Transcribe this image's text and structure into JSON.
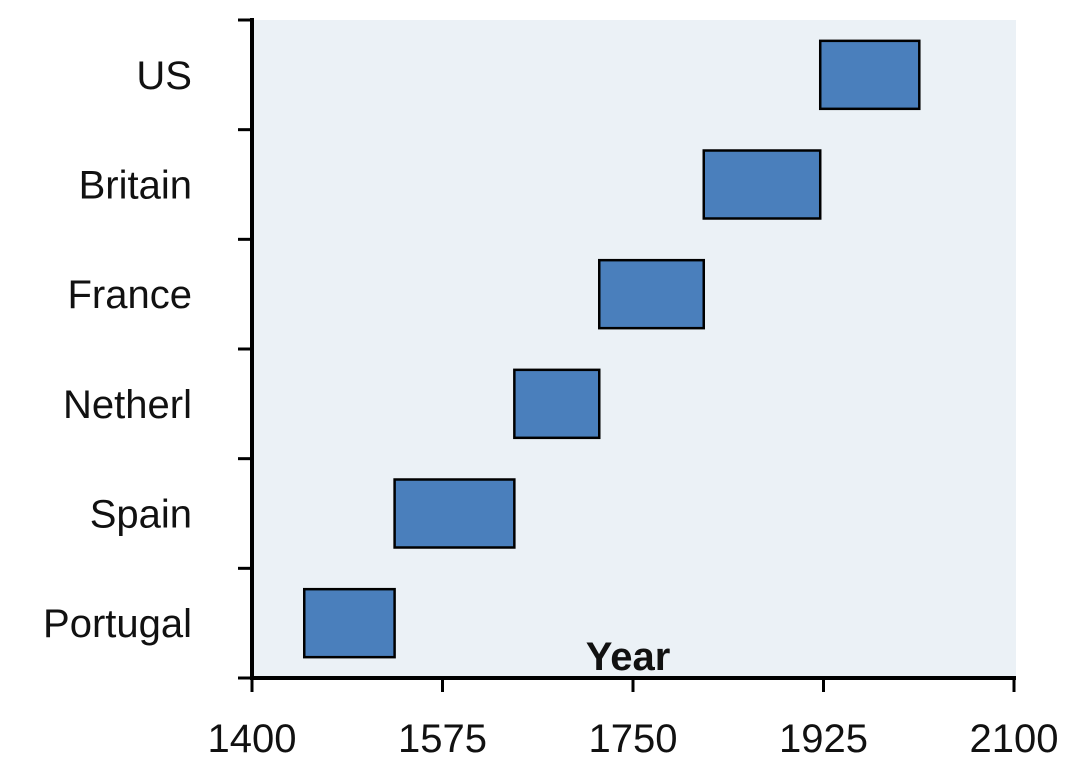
{
  "chart_data": {
    "type": "bar",
    "orientation": "horizontal-range",
    "title": "",
    "xlabel": "Year",
    "ylabel": "",
    "xlim": [
      1400,
      2100
    ],
    "xticks": [
      "1400",
      "1575",
      "1750",
      "1925",
      "2100"
    ],
    "categories": [
      "US",
      "Britain",
      "France",
      "Netherl",
      "Spain",
      "Portugal"
    ],
    "series": [
      {
        "ranges": [
          [
            1922,
            2013
          ],
          [
            1815,
            1922
          ],
          [
            1719,
            1815
          ],
          [
            1641,
            1719
          ],
          [
            1531,
            1641
          ],
          [
            1448,
            1531
          ]
        ]
      }
    ],
    "grid": false,
    "legend": "none",
    "colors": {
      "bar_fill": "#4a7fbc",
      "bar_stroke": "#000000",
      "plot_background": "#ebf1f6",
      "axis": "#000000"
    }
  }
}
